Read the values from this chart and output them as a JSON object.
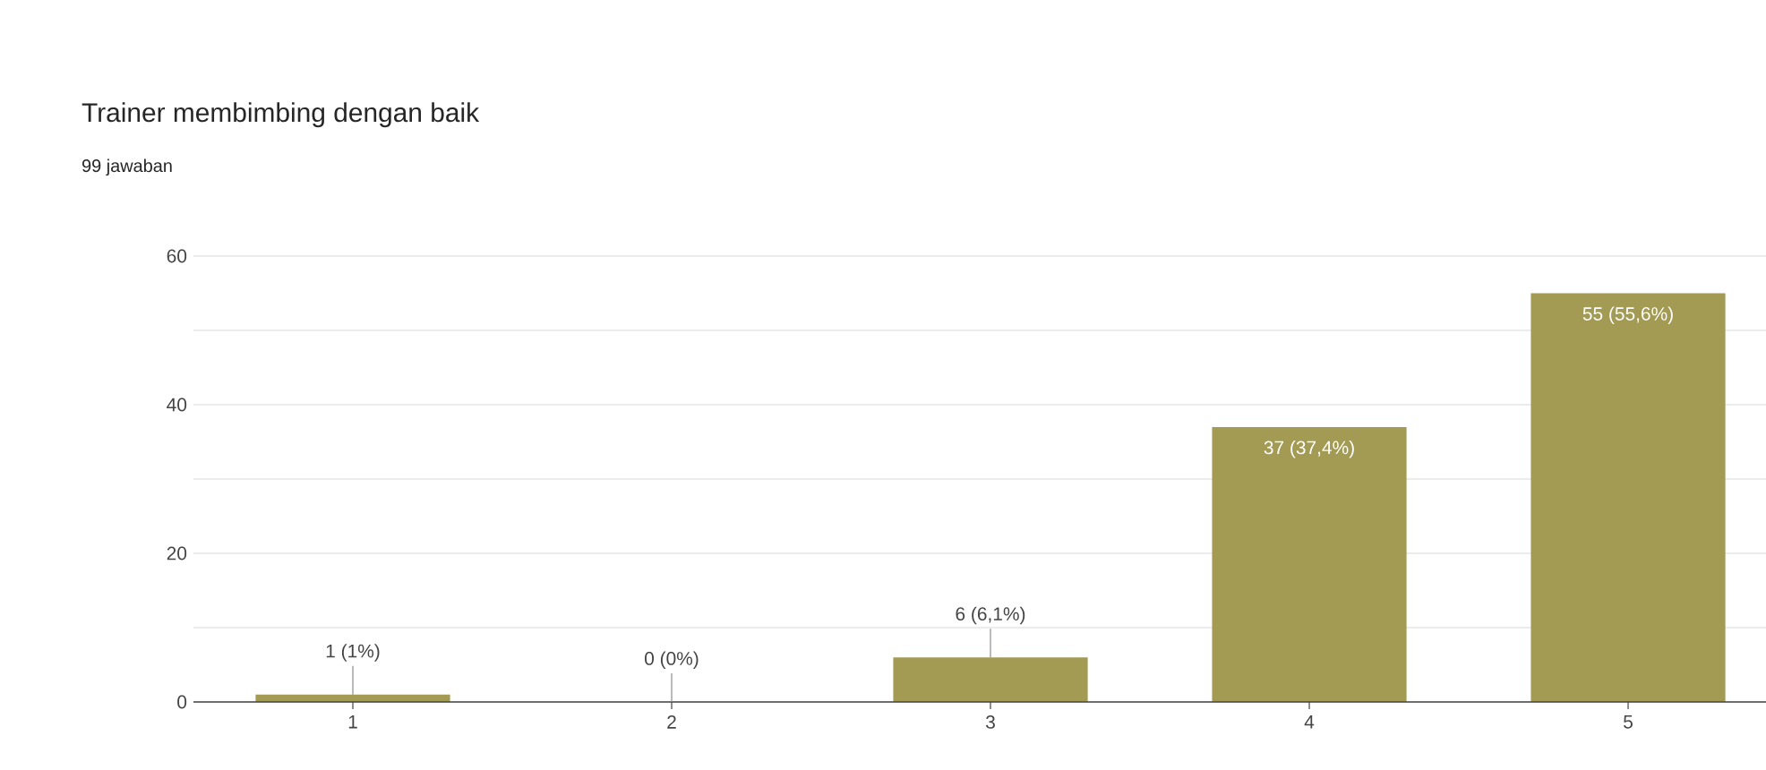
{
  "chart_data": {
    "type": "bar",
    "title": "Trainer membimbing dengan baik",
    "subtitle": "99 jawaban",
    "categories": [
      "1",
      "2",
      "3",
      "4",
      "5"
    ],
    "values": [
      1,
      0,
      6,
      37,
      55
    ],
    "value_labels": [
      "1 (1%)",
      "0 (0%)",
      "6 (6,1%)",
      "37 (37,4%)",
      "55 (55,6%)"
    ],
    "color": "#a39a54",
    "ylim": [
      0,
      60
    ],
    "yticks": [
      0,
      {
        "value": 10,
        "label": null
      },
      20,
      {
        "value": 30,
        "label": null
      },
      40,
      {
        "value": 50,
        "label": null
      },
      60
    ],
    "grid": "y"
  }
}
